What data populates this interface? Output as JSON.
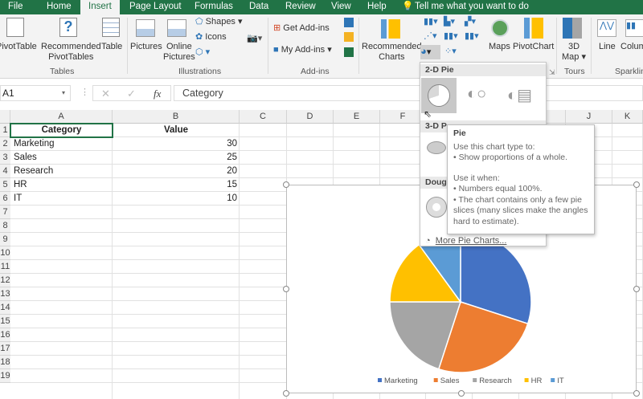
{
  "tabs": [
    "File",
    "Home",
    "Insert",
    "Page Layout",
    "Formulas",
    "Data",
    "Review",
    "View",
    "Help"
  ],
  "active_tab": "Insert",
  "tell_me": "Tell me what you want to do",
  "ribbon": {
    "tables": {
      "pivottable": "PivotTable",
      "recommended_pivot": [
        "Recommended",
        "PivotTables"
      ],
      "table": "Table",
      "label": "Tables"
    },
    "illustrations": {
      "pictures": "Pictures",
      "online_pictures": [
        "Online",
        "Pictures"
      ],
      "shapes": "Shapes",
      "icons": "Icons",
      "label": "Illustrations"
    },
    "addins": {
      "get": "Get Add-ins",
      "my": "My Add-ins",
      "label": "Add-ins"
    },
    "charts": {
      "recommended": [
        "Recommended",
        "Charts"
      ],
      "maps": "Maps",
      "pivotchart": "PivotChart"
    },
    "tours": {
      "map3d": [
        "3D",
        "Map"
      ],
      "label": "Tours"
    },
    "sparklines": {
      "line": "Line",
      "column": "Column",
      "label": "Sparklines"
    }
  },
  "formula_bar": {
    "name_box": "A1",
    "fx": "fx",
    "content": "Category"
  },
  "columns": [
    "A",
    "B",
    "C",
    "D",
    "E",
    "F",
    "G",
    "H",
    "I",
    "J",
    "K"
  ],
  "rows": [
    "1",
    "2",
    "3",
    "4",
    "5",
    "6",
    "7",
    "8",
    "9",
    "10",
    "11",
    "12",
    "13",
    "14",
    "15",
    "16",
    "17",
    "18",
    "19"
  ],
  "table": {
    "headers": [
      "Category",
      "Value"
    ],
    "rows": [
      [
        "Marketing",
        "30"
      ],
      [
        "Sales",
        "25"
      ],
      [
        "Research",
        "20"
      ],
      [
        "HR",
        "15"
      ],
      [
        "IT",
        "10"
      ]
    ]
  },
  "dropdown": {
    "pie2d": "2-D Pie",
    "pie3d": "3-D P",
    "doughnut": "Doug",
    "more": "More Pie Charts..."
  },
  "tooltip": {
    "title": "Pie",
    "line1": "Use this chart type to:",
    "line2": "• Show proportions of a whole.",
    "line3": "Use it when:",
    "line4": "• Numbers equal 100%.",
    "line5": "• The chart contains only a few pie slices (many slices make the angles hard to estimate)."
  },
  "chart_data": {
    "type": "pie",
    "categories": [
      "Marketing",
      "Sales",
      "Research",
      "HR",
      "IT"
    ],
    "values": [
      30,
      25,
      20,
      15,
      10
    ],
    "colors": [
      "#4472c4",
      "#ed7d31",
      "#a5a5a5",
      "#ffc000",
      "#5b9bd5"
    ],
    "legend": "bottom"
  }
}
